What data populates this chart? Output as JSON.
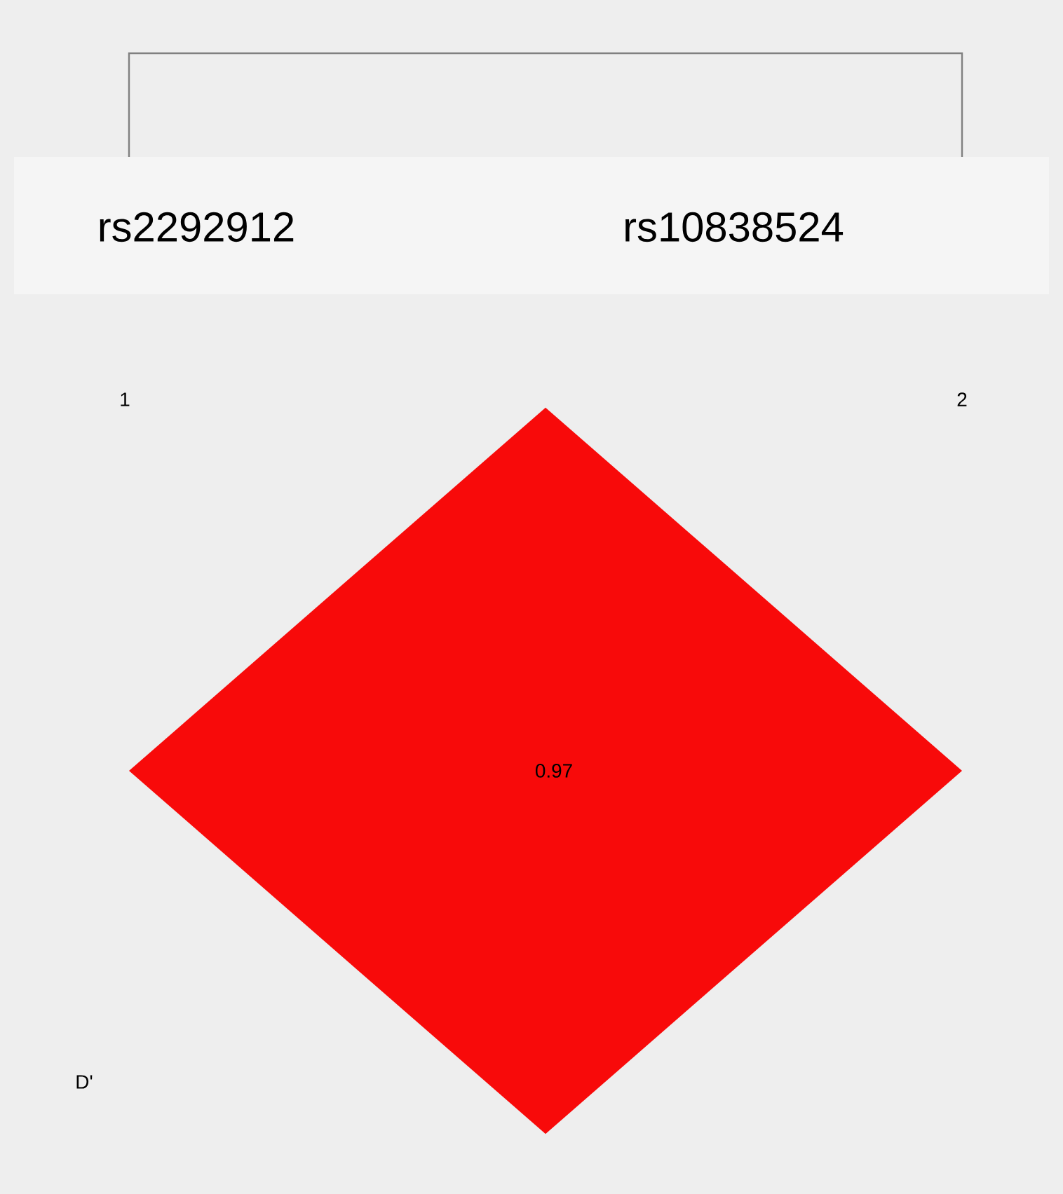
{
  "chart_data": {
    "type": "other",
    "categories": [
      null
    ],
    "values": [
      0.97
    ],
    "colors": [
      "#f80a0a"
    ],
    "data_labels": true,
    "annotations": [
      "rs2292912",
      "rs10838524",
      "1",
      "2",
      "D'"
    ]
  }
}
